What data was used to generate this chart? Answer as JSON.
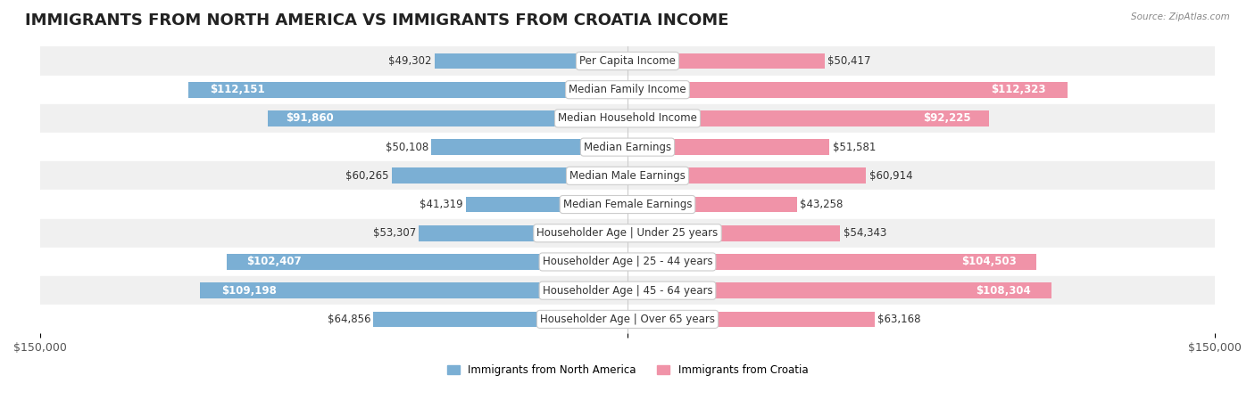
{
  "title": "IMMIGRANTS FROM NORTH AMERICA VS IMMIGRANTS FROM CROATIA INCOME",
  "source": "Source: ZipAtlas.com",
  "categories": [
    "Per Capita Income",
    "Median Family Income",
    "Median Household Income",
    "Median Earnings",
    "Median Male Earnings",
    "Median Female Earnings",
    "Householder Age | Under 25 years",
    "Householder Age | 25 - 44 years",
    "Householder Age | 45 - 64 years",
    "Householder Age | Over 65 years"
  ],
  "left_values": [
    49302,
    112151,
    91860,
    50108,
    60265,
    41319,
    53307,
    102407,
    109198,
    64856
  ],
  "right_values": [
    50417,
    112323,
    92225,
    51581,
    60914,
    43258,
    54343,
    104503,
    108304,
    63168
  ],
  "left_labels": [
    "$49,302",
    "$112,151",
    "$91,860",
    "$50,108",
    "$60,265",
    "$41,319",
    "$53,307",
    "$102,407",
    "$109,198",
    "$64,856"
  ],
  "right_labels": [
    "$50,417",
    "$112,323",
    "$92,225",
    "$51,581",
    "$60,914",
    "$43,258",
    "$54,343",
    "$104,503",
    "$108,304",
    "$63,168"
  ],
  "max_value": 150000,
  "left_color": "#7bafd4",
  "right_color": "#f093a8",
  "left_color_large": "#5b8fc4",
  "right_color_large": "#f06080",
  "left_legend": "Immigrants from North America",
  "right_legend": "Immigrants from Croatia",
  "bar_height": 0.55,
  "row_bg_colors": [
    "#f0f0f0",
    "#ffffff"
  ],
  "title_fontsize": 13,
  "label_fontsize": 8.5,
  "axis_fontsize": 9,
  "threshold_large": 70000
}
